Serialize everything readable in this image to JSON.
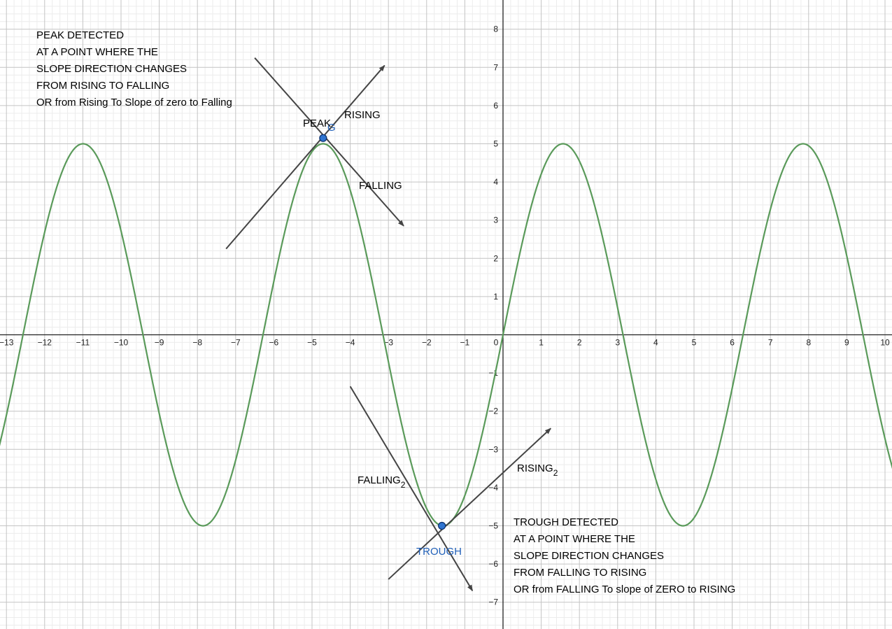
{
  "chart_data": {
    "type": "line",
    "title": "",
    "xlabel": "",
    "ylabel": "",
    "xlim": [
      -13.2,
      10.2
    ],
    "ylim": [
      -7.7,
      8.8
    ],
    "grid": true,
    "x_ticks": [
      -13,
      -12,
      -11,
      -10,
      -9,
      -8,
      -7,
      -6,
      -5,
      -4,
      -3,
      -2,
      -1,
      0,
      1,
      2,
      3,
      4,
      5,
      6,
      7,
      8,
      9,
      10
    ],
    "y_ticks": [
      -7,
      -6,
      -5,
      -4,
      -3,
      -2,
      -1,
      1,
      2,
      3,
      4,
      5,
      6,
      7,
      8
    ],
    "x_tick_labels": [
      "−13",
      "−12",
      "−11",
      "−10",
      "−9",
      "−8",
      "−7",
      "−6",
      "−5",
      "−4",
      "−3",
      "−2",
      "−1",
      "0",
      "1",
      "2",
      "3",
      "4",
      "5",
      "6",
      "7",
      "8",
      "9",
      "10"
    ],
    "y_tick_labels": [
      "−7",
      "−6",
      "−5",
      "−4",
      "−3",
      "−2",
      "−1",
      "1",
      "2",
      "3",
      "4",
      "5",
      "6",
      "7",
      "8"
    ],
    "series": [
      {
        "function": "5*sin(x)",
        "amplitude": 5,
        "color": "#5a9a5a",
        "x_range": [
          -13.2,
          10.2
        ]
      }
    ],
    "points": [
      {
        "name": "G",
        "label": "G",
        "x": -4.71,
        "y": 5.15,
        "color": "#1f5fb8"
      },
      {
        "name": "trough",
        "label": "TROUGH",
        "x": -1.6,
        "y": -5.0,
        "color": "#1f5fb8"
      }
    ],
    "vectors": [
      {
        "name": "rising",
        "label": "RISING",
        "subscript": "",
        "from": [
          -7.25,
          2.25
        ],
        "to": [
          -3.1,
          7.05
        ],
        "arrow": true
      },
      {
        "name": "falling",
        "label": "FALLING",
        "subscript": "",
        "from": [
          -6.5,
          7.25
        ],
        "to": [
          -2.6,
          2.85
        ],
        "arrow": true
      },
      {
        "name": "falling-2",
        "label": "FALLING",
        "subscript": "2",
        "from": [
          -4.0,
          -1.35
        ],
        "to": [
          -0.8,
          -6.7
        ],
        "arrow": true
      },
      {
        "name": "rising-2",
        "label": "RISING",
        "subscript": "2",
        "from": [
          -3.0,
          -6.4
        ],
        "to": [
          1.25,
          -2.45
        ],
        "arrow": true
      }
    ],
    "annotations": {
      "peak_label": "PEAK",
      "peak_note": [
        "PEAK DETECTED",
        "AT A POINT WHERE THE",
        "SLOPE DIRECTION CHANGES",
        "FROM RISING TO FALLING",
        "OR from Rising To Slope of zero to Falling"
      ],
      "trough_note": [
        "TROUGH DETECTED",
        "AT A POINT WHERE THE",
        "SLOPE DIRECTION CHANGES",
        "FROM FALLING TO RISING",
        "OR from FALLING To slope of ZERO to RISING"
      ]
    },
    "colors": {
      "curve": "#5a9a5a",
      "vector": "#444444",
      "point_fill": "#2f74d0",
      "point_label": "#1f5fb8",
      "grid_major": "#c4c4c4",
      "grid_minor": "#ececec",
      "axis": "#222222"
    }
  }
}
